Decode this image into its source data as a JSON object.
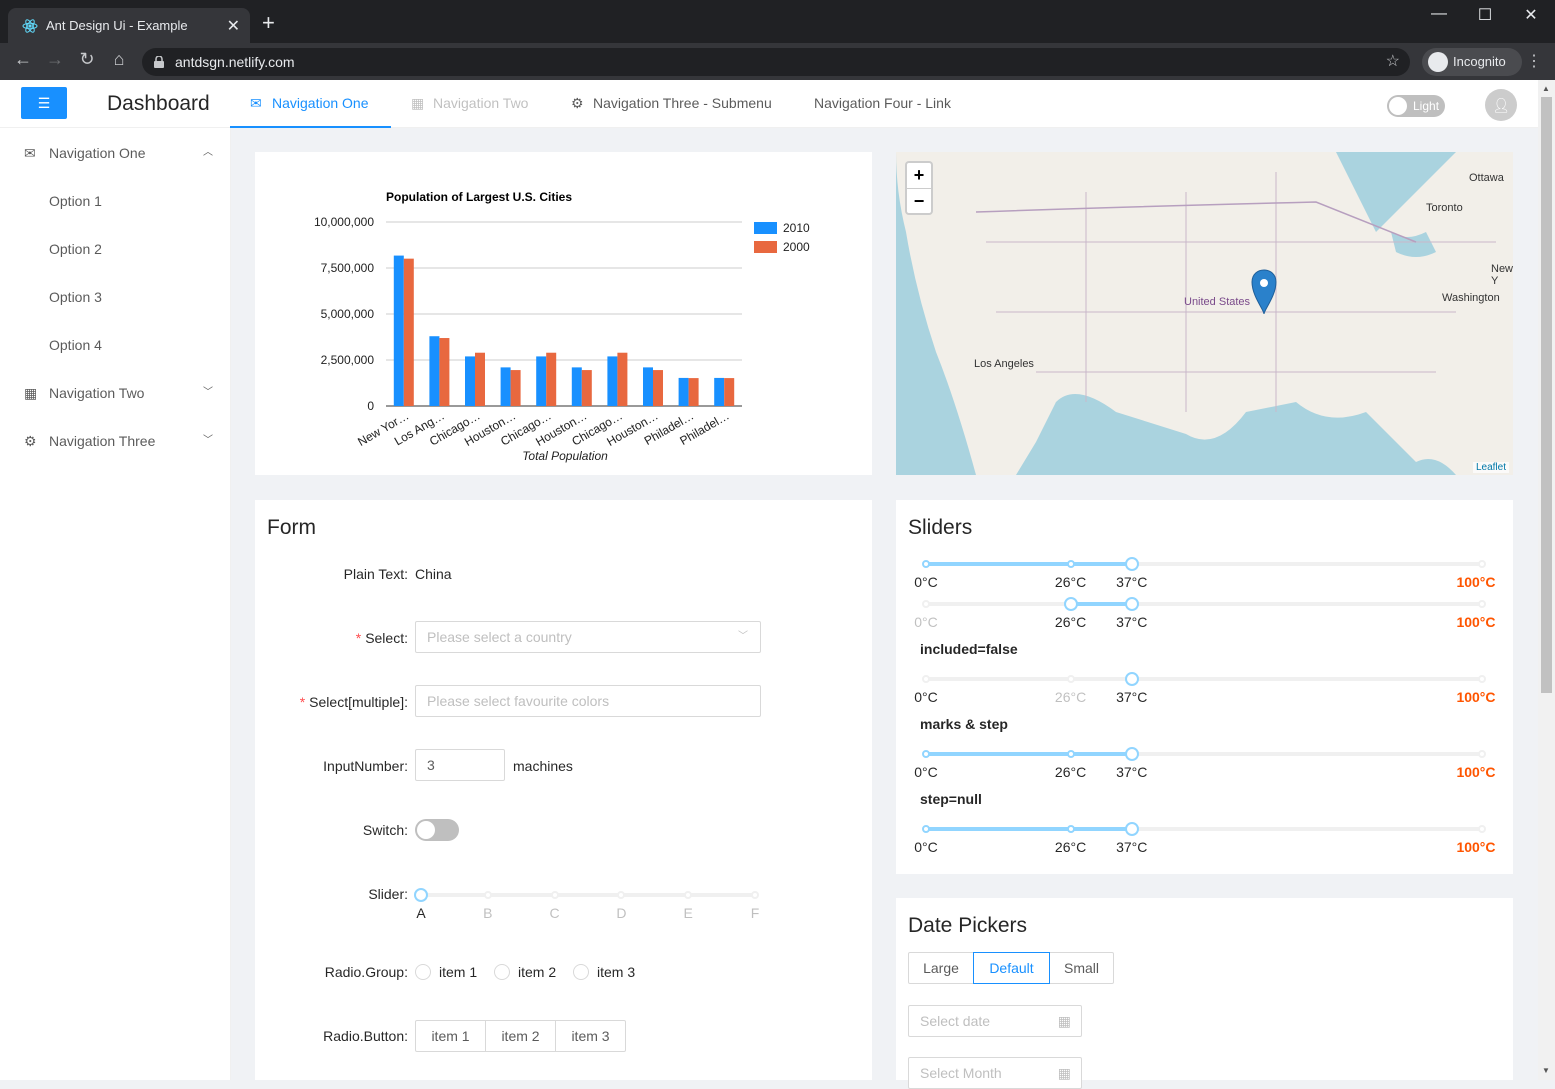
{
  "browser": {
    "tab_title": "Ant Design Ui - Example",
    "url": "antdsgn.netlify.com",
    "incognito_label": "Incognito"
  },
  "header": {
    "brand": "Dashboard",
    "nav": [
      "Navigation One",
      "Navigation Two",
      "Navigation Three - Submenu",
      "Navigation Four - Link"
    ],
    "theme_label": "Light"
  },
  "sider": {
    "items": [
      {
        "label": "Navigation One",
        "icon": "mail-icon"
      },
      {
        "label": "Option 1"
      },
      {
        "label": "Option 2"
      },
      {
        "label": "Option 3"
      },
      {
        "label": "Option 4"
      },
      {
        "label": "Navigation Two",
        "icon": "appstore-icon"
      },
      {
        "label": "Navigation Three",
        "icon": "setting-icon"
      }
    ]
  },
  "chart_data": {
    "type": "bar",
    "title": "Population of Largest U.S. Cities",
    "xlabel": "Total Population",
    "ylabel": "",
    "ylim": [
      0,
      10000000
    ],
    "yticks": [
      "0",
      "2,500,000",
      "5,000,000",
      "7,500,000",
      "10,000,000"
    ],
    "categories": [
      "New Yor…",
      "Los Ang…",
      "Chicago…",
      "Houston…",
      "Chicago…",
      "Houston…",
      "Chicago…",
      "Houston…",
      "Philadel…",
      "Philadel…"
    ],
    "series": [
      {
        "name": "2010",
        "color": "#1890ff",
        "values": [
          8175000,
          3792000,
          2695000,
          2099000,
          2695000,
          2099000,
          2695000,
          2099000,
          1526000,
          1526000
        ]
      },
      {
        "name": "2000",
        "color": "#e8683f",
        "values": [
          8008000,
          3694000,
          2896000,
          1953000,
          2896000,
          1953000,
          2896000,
          1953000,
          1517000,
          1517000
        ]
      }
    ]
  },
  "map": {
    "labels": [
      "Ottawa",
      "Toronto",
      "New Y",
      "Washington",
      "United States",
      "Los Angeles"
    ],
    "attribution": "Leaflet",
    "zoom_in": "+",
    "zoom_out": "−"
  },
  "form": {
    "title": "Form",
    "plain_text_label": "Plain Text",
    "plain_text_value": "China",
    "select_label": "Select",
    "select_placeholder": "Please select a country",
    "multi_label": "Select[multiple]",
    "multi_placeholder": "Please select favourite colors",
    "input_number_label": "InputNumber",
    "input_number_value": "3",
    "input_number_suffix": "machines",
    "switch_label": "Switch",
    "slider_label": "Slider",
    "slider_marks": [
      "A",
      "B",
      "C",
      "D",
      "E",
      "F"
    ],
    "slider_value": "A",
    "radio_group_label": "Radio.Group",
    "radio_items": [
      "item 1",
      "item 2",
      "item 3"
    ],
    "radio_button_label": "Radio.Button",
    "radio_buttons": [
      "item 1",
      "item 2",
      "item 3"
    ]
  },
  "sliders": {
    "title": "Sliders",
    "marks": [
      "0°C",
      "26°C",
      "37°C",
      "100°C"
    ],
    "captions": [
      "included=false",
      "marks & step",
      "step=null"
    ]
  },
  "date_pickers": {
    "title": "Date Pickers",
    "sizes": [
      "Large",
      "Default",
      "Small"
    ],
    "selected_size": "Default",
    "date_placeholder": "Select date",
    "month_placeholder": "Select Month"
  },
  "colors": {
    "primary": "#1890ff",
    "slider_fill": "#91d5ff",
    "hot_mark": "#ff5500"
  }
}
